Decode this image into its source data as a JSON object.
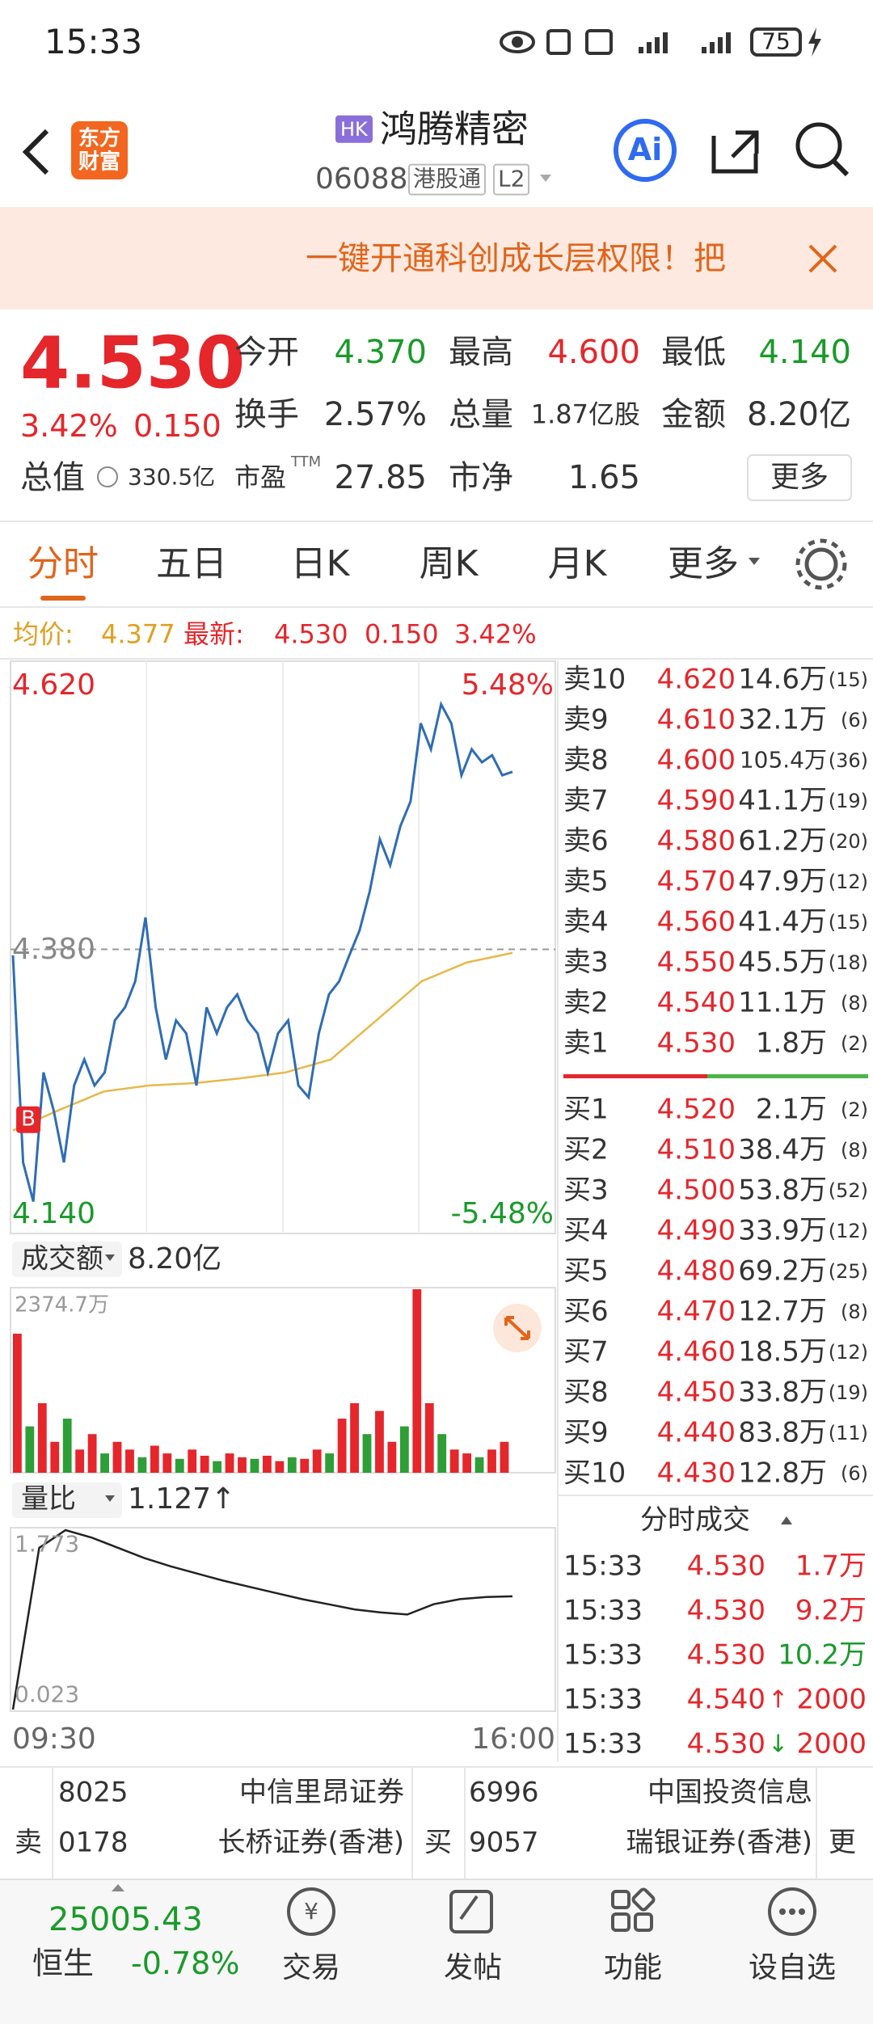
{
  "status_bar": {
    "time": "15:33",
    "battery": "75"
  },
  "header": {
    "logo": "东方财富",
    "market_badge": "HK",
    "title": "鸿腾精密",
    "code": "06088",
    "connect": "港股通",
    "level": "L2",
    "ai": "Ai"
  },
  "banner": {
    "text": "一键开通科创成长层权限！把"
  },
  "quote": {
    "price": "4.530",
    "change_pct": "3.42%",
    "change": "0.150",
    "stats": [
      {
        "label": "今开",
        "value": "4.370",
        "color": "#1a9a2a"
      },
      {
        "label": "最高",
        "value": "4.600",
        "color": "#e5262b"
      },
      {
        "label": "最低",
        "value": "4.140",
        "color": "#1a9a2a"
      },
      {
        "label": "换手",
        "value": "2.57%",
        "color": "#333333"
      },
      {
        "label": "总量",
        "value": "1.87亿股",
        "color": "#333333"
      },
      {
        "label": "金额",
        "value": "8.20亿",
        "color": "#333333"
      },
      {
        "label": "市盈",
        "value": "27.85",
        "color": "#333333"
      },
      {
        "label": "市净",
        "value": "1.65",
        "color": "#333333"
      }
    ],
    "pe_suffix": "TTM",
    "market_cap_label": "总值",
    "market_cap": "330.5亿",
    "more": "更多"
  },
  "tabs": {
    "items": [
      "分时",
      "五日",
      "日K",
      "周K",
      "月K",
      "更多"
    ],
    "active": 0
  },
  "info_line": {
    "avg_label": "均价:",
    "avg": "4.377",
    "last_label": "最新:",
    "last": "4.530",
    "change": "0.150",
    "change_pct": "3.42%"
  },
  "price_chart": {
    "ylim": [
      4.14,
      4.62
    ],
    "yticks": [
      {
        "value": 4.62,
        "label": "4.620"
      },
      {
        "value": 4.38,
        "label": "4.380"
      },
      {
        "value": 4.14,
        "label": "4.140"
      }
    ],
    "pct_labels": [
      "5.48%",
      "-5.48%"
    ],
    "buy_marker": "B",
    "values": [
      4.375,
      4.2,
      4.167,
      4.276,
      4.244,
      4.2,
      4.265,
      4.287,
      4.265,
      4.276,
      4.32,
      4.331,
      4.353,
      4.407,
      4.331,
      4.287,
      4.32,
      4.309,
      4.265,
      4.331,
      4.309,
      4.331,
      4.342,
      4.32,
      4.309,
      4.276,
      4.309,
      4.32,
      4.265,
      4.255,
      4.309,
      4.342,
      4.353,
      4.375,
      4.396,
      4.429,
      4.473,
      4.451,
      4.484,
      4.505,
      4.571,
      4.549,
      4.587,
      4.571,
      4.527,
      4.549,
      4.538,
      4.544,
      4.527,
      4.53
    ],
    "avg_values": [
      4.227,
      4.244,
      4.26,
      4.265,
      4.267,
      4.271,
      4.276,
      4.287,
      4.32,
      4.353,
      4.369,
      4.377
    ],
    "color": "#2f6db5",
    "avg_color": "#e8b84a"
  },
  "volume_chart": {
    "selector": "成交额",
    "total": "8.20亿",
    "ylim": [
      0,
      2374.7
    ],
    "yticks": [
      {
        "value": 2374.7,
        "label": "2374.7万"
      }
    ],
    "values": [
      1800,
      600,
      900,
      400,
      700,
      300,
      500,
      250,
      400,
      300,
      200,
      350,
      250,
      180,
      300,
      220,
      150,
      250,
      200,
      180,
      220,
      150,
      200,
      180,
      300,
      250,
      700,
      900,
      500,
      800,
      400,
      600,
      2374.7,
      900,
      500,
      300,
      250,
      200,
      300,
      400
    ]
  },
  "ratio_chart": {
    "selector": "量比",
    "value": "1.127↑",
    "ylim": [
      0.023,
      1.773
    ],
    "yticks": [
      1.773,
      0.023
    ],
    "values": [
      0.023,
      1.6,
      1.773,
      1.7,
      1.6,
      1.5,
      1.42,
      1.35,
      1.28,
      1.22,
      1.16,
      1.1,
      1.05,
      1.0,
      0.97,
      0.95,
      1.05,
      1.1,
      1.12,
      1.127
    ]
  },
  "time_labels": [
    "09:30",
    "16:00"
  ],
  "order_book": {
    "asks": [
      {
        "label": "卖10",
        "price": "4.620",
        "volume": "14.6万",
        "count": "(15)"
      },
      {
        "label": "卖9",
        "price": "4.610",
        "volume": "32.1万",
        "count": "(6)"
      },
      {
        "label": "卖8",
        "price": "4.600",
        "volume": "105.4万",
        "count": "(36)"
      },
      {
        "label": "卖7",
        "price": "4.590",
        "volume": "41.1万",
        "count": "(19)"
      },
      {
        "label": "卖6",
        "price": "4.580",
        "volume": "61.2万",
        "count": "(20)"
      },
      {
        "label": "卖5",
        "price": "4.570",
        "volume": "47.9万",
        "count": "(12)"
      },
      {
        "label": "卖4",
        "price": "4.560",
        "volume": "41.4万",
        "count": "(15)"
      },
      {
        "label": "卖3",
        "price": "4.550",
        "volume": "45.5万",
        "count": "(18)"
      },
      {
        "label": "卖2",
        "price": "4.540",
        "volume": "11.1万",
        "count": "(8)"
      },
      {
        "label": "卖1",
        "price": "4.530",
        "volume": "1.8万",
        "count": "(2)"
      }
    ],
    "bids": [
      {
        "label": "买1",
        "price": "4.520",
        "volume": "2.1万",
        "count": "(2)"
      },
      {
        "label": "买2",
        "price": "4.510",
        "volume": "38.4万",
        "count": "(8)"
      },
      {
        "label": "买3",
        "price": "4.500",
        "volume": "53.8万",
        "count": "(52)"
      },
      {
        "label": "买4",
        "price": "4.490",
        "volume": "33.9万",
        "count": "(12)"
      },
      {
        "label": "买5",
        "price": "4.480",
        "volume": "69.2万",
        "count": "(25)"
      },
      {
        "label": "买6",
        "price": "4.470",
        "volume": "12.7万",
        "count": "(8)"
      },
      {
        "label": "买7",
        "price": "4.460",
        "volume": "18.5万",
        "count": "(12)"
      },
      {
        "label": "买8",
        "price": "4.450",
        "volume": "33.8万",
        "count": "(19)"
      },
      {
        "label": "买9",
        "price": "4.440",
        "volume": "83.8万",
        "count": "(11)"
      },
      {
        "label": "买10",
        "price": "4.430",
        "volume": "12.8万",
        "count": "(6)"
      }
    ]
  },
  "trades": {
    "title": "分时成交",
    "rows": [
      {
        "time": "15:33",
        "price": "4.530",
        "volume": "1.7万",
        "color": "#e5262b"
      },
      {
        "time": "15:33",
        "price": "4.530",
        "volume": "9.2万",
        "color": "#e5262b"
      },
      {
        "time": "15:33",
        "price": "4.530",
        "volume": "10.2万",
        "color": "#1a9a2a"
      },
      {
        "time": "15:33",
        "price": "4.540",
        "arrow": "↑",
        "arrow_color": "#e5262b",
        "volume": "2000",
        "color": "#e5262b"
      },
      {
        "time": "15:33",
        "price": "4.530",
        "arrow": "↓",
        "arrow_color": "#1a9a2a",
        "volume": "2000",
        "color": "#e5262b"
      }
    ]
  },
  "broker_queue": {
    "sell_label": "卖",
    "buy_label": "买",
    "more": "更",
    "sell": [
      {
        "id": "8025",
        "name": "中信里昂证券"
      },
      {
        "id": "0178",
        "name": "长桥证券(香港)"
      }
    ],
    "buy": [
      {
        "id": "6996",
        "name": "中国投资信息"
      },
      {
        "id": "9057",
        "name": "瑞银证券(香港)"
      }
    ]
  },
  "bottom_nav": {
    "index_value": "25005.43",
    "index_name": "恒生",
    "index_change": "-0.78%",
    "items": [
      "交易",
      "发帖",
      "功能",
      "设自选"
    ]
  }
}
